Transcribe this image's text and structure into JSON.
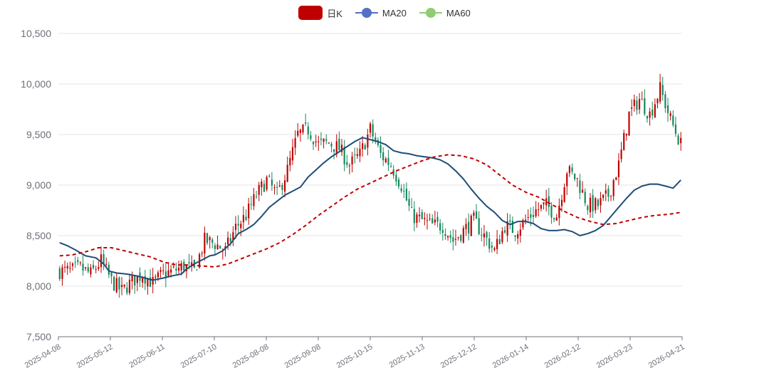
{
  "legend": [
    {
      "label": "日K",
      "kind": "candle",
      "color": "#c00000"
    },
    {
      "label": "MA20",
      "kind": "line",
      "color": "#5470c6"
    },
    {
      "label": "MA60",
      "kind": "line",
      "color": "#91cc75"
    }
  ],
  "colors": {
    "up": "#c00000",
    "down": "#14895e",
    "ma20": "#1f4e79",
    "ma60": "#c00000",
    "grid": "#e6e6e6",
    "axis": "#6e7079"
  },
  "chart_data": {
    "type": "candlestick",
    "title": "",
    "ylim": [
      7500,
      10500
    ],
    "y_ticks": [
      "7,500",
      "8,000",
      "8,500",
      "9,000",
      "9,500",
      "10,000",
      "10,500"
    ],
    "y_tick_values": [
      7500,
      8000,
      8500,
      9000,
      9500,
      10000,
      10500
    ],
    "x_ticks": [
      "2025-04-08",
      "2025-05-12",
      "2025-06-11",
      "2025-07-10",
      "2025-08-08",
      "2025-09-08",
      "2025-10-15",
      "2025-11-13",
      "2025-12-12",
      "2026-01-14",
      "2026-02-12",
      "2026-03-23",
      "2026-04-21"
    ],
    "x_tick_index": [
      0,
      20,
      40,
      60,
      80,
      100,
      120,
      140,
      160,
      180,
      200,
      220,
      240
    ],
    "n_bars": 241,
    "series": [
      {
        "name": "MA20",
        "style": "solid",
        "values": [
          [
            0,
            8430
          ],
          [
            3,
            8400
          ],
          [
            6,
            8360
          ],
          [
            10,
            8300
          ],
          [
            14,
            8280
          ],
          [
            17,
            8220
          ],
          [
            19,
            8150
          ],
          [
            22,
            8130
          ],
          [
            26,
            8120
          ],
          [
            30,
            8100
          ],
          [
            33,
            8080
          ],
          [
            36,
            8060
          ],
          [
            40,
            8080
          ],
          [
            43,
            8100
          ],
          [
            47,
            8120
          ],
          [
            49,
            8170
          ],
          [
            52,
            8220
          ],
          [
            55,
            8260
          ],
          [
            58,
            8300
          ],
          [
            60,
            8310
          ],
          [
            63,
            8350
          ],
          [
            66,
            8420
          ],
          [
            69,
            8520
          ],
          [
            72,
            8560
          ],
          [
            75,
            8610
          ],
          [
            78,
            8690
          ],
          [
            81,
            8780
          ],
          [
            84,
            8840
          ],
          [
            87,
            8900
          ],
          [
            90,
            8940
          ],
          [
            93,
            8980
          ],
          [
            96,
            9080
          ],
          [
            99,
            9150
          ],
          [
            102,
            9220
          ],
          [
            105,
            9280
          ],
          [
            108,
            9330
          ],
          [
            111,
            9380
          ],
          [
            114,
            9430
          ],
          [
            117,
            9470
          ],
          [
            120,
            9450
          ],
          [
            123,
            9430
          ],
          [
            126,
            9400
          ],
          [
            129,
            9340
          ],
          [
            132,
            9320
          ],
          [
            135,
            9310
          ],
          [
            138,
            9290
          ],
          [
            141,
            9280
          ],
          [
            144,
            9270
          ],
          [
            147,
            9250
          ],
          [
            150,
            9210
          ],
          [
            153,
            9140
          ],
          [
            156,
            9060
          ],
          [
            159,
            8960
          ],
          [
            162,
            8870
          ],
          [
            165,
            8790
          ],
          [
            168,
            8730
          ],
          [
            171,
            8650
          ],
          [
            174,
            8610
          ],
          [
            177,
            8640
          ],
          [
            180,
            8640
          ],
          [
            183,
            8620
          ],
          [
            186,
            8570
          ],
          [
            189,
            8550
          ],
          [
            192,
            8550
          ],
          [
            195,
            8560
          ],
          [
            198,
            8540
          ],
          [
            201,
            8500
          ],
          [
            204,
            8520
          ],
          [
            207,
            8550
          ],
          [
            210,
            8600
          ],
          [
            213,
            8690
          ],
          [
            216,
            8780
          ],
          [
            219,
            8870
          ],
          [
            222,
            8950
          ],
          [
            225,
            8990
          ],
          [
            228,
            9010
          ],
          [
            231,
            9010
          ],
          [
            234,
            8990
          ],
          [
            237,
            8970
          ],
          [
            240,
            9050
          ]
        ]
      },
      {
        "name": "MA60",
        "style": "dashed",
        "values": [
          [
            0,
            8300
          ],
          [
            5,
            8310
          ],
          [
            10,
            8340
          ],
          [
            15,
            8380
          ],
          [
            20,
            8380
          ],
          [
            25,
            8350
          ],
          [
            30,
            8320
          ],
          [
            35,
            8290
          ],
          [
            40,
            8240
          ],
          [
            45,
            8210
          ],
          [
            50,
            8210
          ],
          [
            55,
            8200
          ],
          [
            60,
            8190
          ],
          [
            65,
            8220
          ],
          [
            70,
            8270
          ],
          [
            75,
            8320
          ],
          [
            80,
            8370
          ],
          [
            85,
            8430
          ],
          [
            90,
            8510
          ],
          [
            95,
            8600
          ],
          [
            100,
            8700
          ],
          [
            105,
            8790
          ],
          [
            110,
            8880
          ],
          [
            115,
            8960
          ],
          [
            120,
            9020
          ],
          [
            125,
            9080
          ],
          [
            130,
            9140
          ],
          [
            135,
            9190
          ],
          [
            140,
            9240
          ],
          [
            145,
            9280
          ],
          [
            150,
            9300
          ],
          [
            155,
            9290
          ],
          [
            160,
            9260
          ],
          [
            165,
            9200
          ],
          [
            170,
            9100
          ],
          [
            175,
            9000
          ],
          [
            180,
            8930
          ],
          [
            185,
            8880
          ],
          [
            190,
            8810
          ],
          [
            195,
            8740
          ],
          [
            200,
            8680
          ],
          [
            205,
            8640
          ],
          [
            210,
            8610
          ],
          [
            215,
            8620
          ],
          [
            220,
            8650
          ],
          [
            225,
            8680
          ],
          [
            230,
            8700
          ],
          [
            235,
            8710
          ],
          [
            240,
            8730
          ]
        ]
      }
    ],
    "ohlc_keyframes": [
      [
        0,
        8150
      ],
      [
        4,
        8150
      ],
      [
        8,
        8180
      ],
      [
        12,
        8120
      ],
      [
        16,
        8250
      ],
      [
        20,
        8050
      ],
      [
        24,
        7950
      ],
      [
        28,
        8050
      ],
      [
        32,
        8120
      ],
      [
        36,
        8030
      ],
      [
        40,
        8120
      ],
      [
        44,
        8150
      ],
      [
        48,
        8200
      ],
      [
        52,
        8150
      ],
      [
        56,
        8450
      ],
      [
        60,
        8420
      ],
      [
        64,
        8350
      ],
      [
        68,
        8580
      ],
      [
        72,
        8700
      ],
      [
        76,
        8900
      ],
      [
        80,
        9050
      ],
      [
        84,
        8900
      ],
      [
        88,
        9150
      ],
      [
        92,
        9500
      ],
      [
        96,
        9550
      ],
      [
        100,
        9400
      ],
      [
        104,
        9420
      ],
      [
        108,
        9360
      ],
      [
        112,
        9200
      ],
      [
        116,
        9300
      ],
      [
        120,
        9550
      ],
      [
        124,
        9300
      ],
      [
        128,
        9200
      ],
      [
        132,
        9000
      ],
      [
        136,
        8700
      ],
      [
        140,
        8650
      ],
      [
        144,
        8600
      ],
      [
        148,
        8600
      ],
      [
        152,
        8450
      ],
      [
        156,
        8550
      ],
      [
        160,
        8650
      ],
      [
        164,
        8500
      ],
      [
        168,
        8350
      ],
      [
        172,
        8600
      ],
      [
        176,
        8550
      ],
      [
        180,
        8650
      ],
      [
        184,
        8750
      ],
      [
        188,
        8800
      ],
      [
        192,
        8700
      ],
      [
        196,
        9150
      ],
      [
        200,
        9050
      ],
      [
        204,
        8800
      ],
      [
        208,
        8800
      ],
      [
        212,
        8900
      ],
      [
        216,
        9200
      ],
      [
        220,
        9700
      ],
      [
        224,
        9850
      ],
      [
        228,
        9700
      ],
      [
        232,
        9950
      ],
      [
        236,
        9650
      ],
      [
        240,
        9400
      ]
    ]
  }
}
